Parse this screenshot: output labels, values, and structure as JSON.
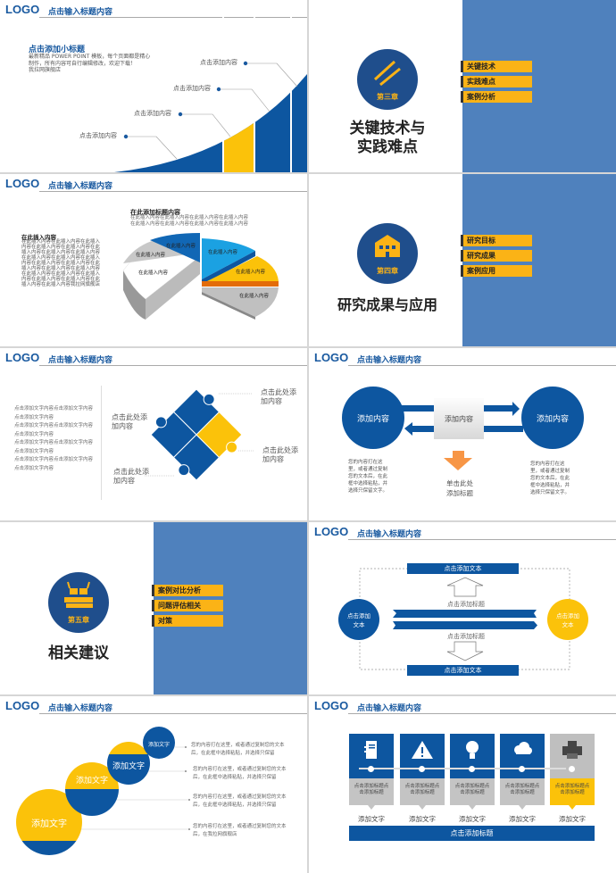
{
  "header": {
    "logo": "LOGO",
    "title": "点击输入标题内容"
  },
  "colors": {
    "blue": "#0d56a0",
    "yellow": "#fbc20a",
    "pane": "#4f81bd",
    "orange": "#f79646"
  },
  "s1": {
    "subtitle": "点击添加小标题",
    "body": [
      "最新精品 POWER POINT 模板，每个页面都是精心",
      "制作，所有内容可自行编辑修改，欢迎下载！",
      "我拉网旗舰店"
    ],
    "labels": [
      "点击添加内容",
      "点击添加内容",
      "点击添加内容",
      "点击添加内容"
    ]
  },
  "s2": {
    "icon": "pencil-ruler-icon",
    "chapter": "第三章",
    "title": [
      "关键技术与",
      "实践难点"
    ],
    "tags": [
      "关键技术",
      "实践难点",
      "案例分析"
    ]
  },
  "s3": {
    "title": "在此添加标题内容",
    "title_lines": [
      "在此插入内容在此插入内容在此插入内容在此插入内容",
      "在此插入内容在此插入内容在此插入内容在此插入内容"
    ],
    "left_heading": "在此插入内容",
    "left_body": "在此插入内容在此插入内容在此插入内容在此插入内容在此插入内容在此插入内容在此插入内容在此插入内容在此插入内容在此插入内容在此插入内容在此插入内容在此插入内容在此插入内容在此插入内容在此插入内容在此插入内容在此插入内容在此插入内容在此插入内容在此插入内容在此插入内容在此插入内容我拉网旗舰店",
    "slices": [
      "在此插入内容",
      "在此插入内容",
      "在此插入内容",
      "在此插入内容",
      "在此插入内容",
      "在此插入内容"
    ]
  },
  "s4": {
    "icon": "building-icon",
    "chapter": "第四章",
    "title": "研究成果与应用",
    "tags": [
      "研究目标",
      "研究成果",
      "案例应用"
    ]
  },
  "s5": {
    "left_text": [
      "点击添加文字内容点击添加文字内容点击添加文字内容",
      "点击添加文字内容点击添加文字内容点击添加文字内容",
      "点击添加文字内容点击添加文字内容点击添加文字内容",
      "点击添加文字内容点击添加文字内容点击添加文字内容"
    ],
    "labels": [
      "点击此处添加内容",
      "点击此处添加内容",
      "点击此处添加内容",
      "点击此处添加内容"
    ]
  },
  "s6": {
    "left_circle": "添加内容",
    "right_circle": "添加内容",
    "center_box": "添加内容",
    "left_text": "您的内容打在这里，或者通过复制您的文本后，在此框中选择粘贴，并选择只保留文字。",
    "right_text": "您的内容打在这里，或者通过复制您的文本后，在此框中选择粘贴，并选择只保留文字。",
    "arrow_label": "单击此处添加标题"
  },
  "s7": {
    "icon": "books-glasses-icon",
    "chapter": "第五章",
    "title": "相关建议",
    "tags": [
      "案例对比分析",
      "问题评估相关",
      "对策"
    ]
  },
  "s8": {
    "top_bar": "点击添加文本",
    "bottom_bar": "点击添加文本",
    "label_top": "点击添加标题",
    "label_bottom": "点击添加标题",
    "left_circle": "点击添加文本",
    "right_circle": "点击添加文本"
  },
  "s9": {
    "circles": [
      "添加文字",
      "添加文字",
      "添加文字",
      "添加文字"
    ],
    "texts": [
      "您的内容打在这里，或者通过复制您的文本后，在此框中选择粘贴，并选择只保留",
      "您的内容打在这里，或者通过复制您的文本后，在此框中选择粘贴，并选择只保留",
      "您的内容打在这里，或者通过复制您的文本后，在此框中选择粘贴，并选择只保留",
      "您的内容打在这里，或者通过复制您的文本后，在我拉网旗舰店"
    ]
  },
  "s10": {
    "cards": [
      {
        "icon": "notebook-icon",
        "title": "点击添加标题点击添加标题",
        "label": "添加文字"
      },
      {
        "icon": "warning-icon",
        "title": "点击添加标题点击添加标题",
        "label": "添加文字"
      },
      {
        "icon": "lightbulb-icon",
        "title": "点击添加标题点击添加标题",
        "label": "添加文字"
      },
      {
        "icon": "cloud-icon",
        "title": "点击添加标题点击添加标题",
        "label": "添加文字"
      },
      {
        "icon": "printer-icon",
        "title": "点击添加标题点击添加标题",
        "label": "添加文字"
      }
    ],
    "bottom_bar": "点击添加标题"
  }
}
